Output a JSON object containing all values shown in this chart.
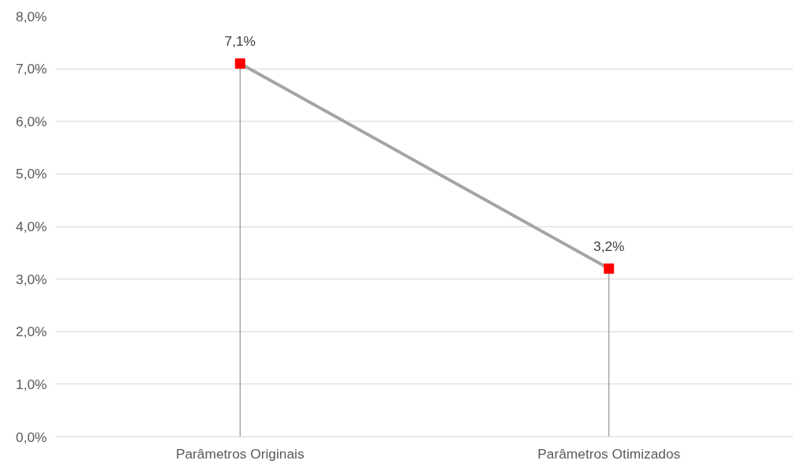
{
  "chart_data": {
    "type": "line",
    "categories": [
      "Parâmetros Originais",
      "Parâmetros Otimizados"
    ],
    "series": [
      {
        "color": "#a5a5a5",
        "colors": [
          "#ff0000",
          "#ff0000"
        ],
        "values": [
          7.1,
          3.2
        ],
        "errors": [
          [
            0,
            7.1
          ],
          [
            0,
            3.2
          ]
        ],
        "value_labels": [
          "7,1%",
          "3,2%"
        ]
      }
    ],
    "ylim": [
      0,
      8
    ],
    "yticks": [
      {
        "value": 0,
        "label": "0,0%"
      },
      {
        "value": 1,
        "label": "1,0%"
      },
      {
        "value": 2,
        "label": "2,0%"
      },
      {
        "value": 3,
        "label": "3,0%"
      },
      {
        "value": 4,
        "label": "4,0%"
      },
      {
        "value": 5,
        "label": "5,0%"
      },
      {
        "value": 6,
        "label": "6,0%"
      },
      {
        "value": 7,
        "label": "7,0%"
      },
      {
        "value": 8,
        "label": "8,0%"
      }
    ],
    "grid": "y",
    "marker": "square",
    "line_style": "solid"
  }
}
